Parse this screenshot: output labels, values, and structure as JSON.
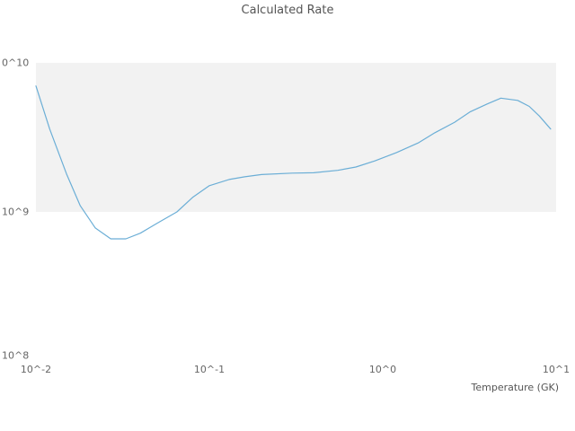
{
  "title": "Calculated Rate",
  "chart_data": {
    "type": "line",
    "title": "Calculated Rate",
    "xlabel": "Temperature (GK)",
    "ylabel": "",
    "x_scale": "log",
    "y_scale": "log",
    "xlim": [
      0.01,
      10
    ],
    "ylim": [
      100000000.0,
      10000000000.0
    ],
    "x_tick_labels": [
      "10^-2",
      "10^-1",
      "10^0",
      "10^1"
    ],
    "y_tick_labels": [
      "10^8",
      "10^9",
      "0^10"
    ],
    "grid": "off",
    "legend": "none",
    "shaded_band": {
      "y_from": 1000000000.0,
      "y_to": 10000000000.0,
      "color": "#f2f2f2"
    },
    "line_color": "#6baed6",
    "series": [
      {
        "name": "Calculated Rate",
        "x": [
          0.01,
          0.012,
          0.015,
          0.018,
          0.022,
          0.027,
          0.033,
          0.04,
          0.05,
          0.065,
          0.08,
          0.1,
          0.13,
          0.16,
          0.2,
          0.3,
          0.4,
          0.55,
          0.7,
          0.9,
          1.2,
          1.6,
          2.0,
          2.6,
          3.2,
          4.0,
          4.8,
          6.0,
          7.0,
          8.0,
          9.3
        ],
        "y": [
          7000000000.0,
          3600000000.0,
          1800000000.0,
          1100000000.0,
          780000000.0,
          660000000.0,
          660000000.0,
          720000000.0,
          840000000.0,
          1000000000.0,
          1250000000.0,
          1500000000.0,
          1650000000.0,
          1720000000.0,
          1780000000.0,
          1820000000.0,
          1830000000.0,
          1900000000.0,
          2000000000.0,
          2200000000.0,
          2500000000.0,
          2900000000.0,
          3400000000.0,
          4000000000.0,
          4700000000.0,
          5300000000.0,
          5800000000.0,
          5600000000.0,
          5100000000.0,
          4400000000.0,
          3600000000.0
        ]
      }
    ]
  }
}
